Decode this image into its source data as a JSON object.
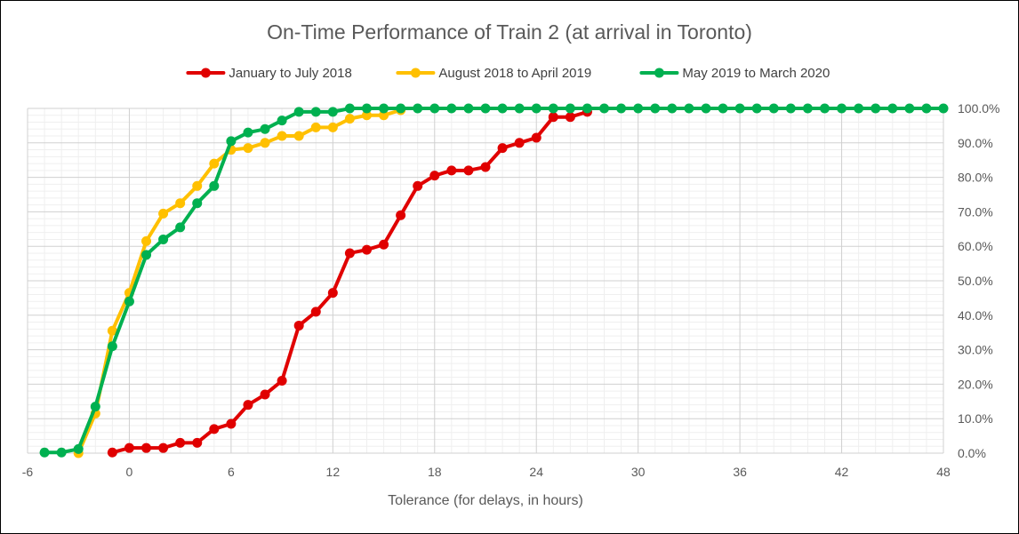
{
  "chart_data": {
    "type": "line",
    "title": "On-Time Performance of Train 2 (at arrival in Toronto)",
    "xlabel": "Tolerance (for delays, in hours)",
    "ylabel": "",
    "xlim": [
      -6,
      48
    ],
    "ylim": [
      0,
      100
    ],
    "x_major_step": 6,
    "x_minor_step": 1,
    "y_major_step": 10,
    "y_minor_step": 2,
    "y_tick_format": "percent_one_decimal",
    "x_ticks": [
      "-6",
      "0",
      "6",
      "12",
      "18",
      "24",
      "30",
      "36",
      "42",
      "48"
    ],
    "y_ticks": [
      "0.0%",
      "10.0%",
      "20.0%",
      "30.0%",
      "40.0%",
      "50.0%",
      "60.0%",
      "70.0%",
      "80.0%",
      "90.0%",
      "100.0%"
    ],
    "y_axis_position": "right",
    "grid": true,
    "legend_position": "top",
    "series": [
      {
        "name": "January to July 2018",
        "color": "#e00000",
        "x": [
          -1,
          0,
          1,
          2,
          3,
          4,
          5,
          6,
          7,
          8,
          9,
          10,
          11,
          12,
          13,
          14,
          15,
          16,
          17,
          18,
          19,
          20,
          21,
          22,
          23,
          24,
          25,
          26,
          27
        ],
        "values": [
          0.2,
          1.5,
          1.5,
          1.5,
          3,
          3,
          7,
          8.5,
          14,
          17,
          21,
          37,
          41,
          46.5,
          58,
          59,
          60.5,
          69,
          77.5,
          80.5,
          82,
          82,
          83,
          88.5,
          90,
          91.5,
          97.5,
          97.5,
          99
        ]
      },
      {
        "name": "August 2018 to April 2019",
        "color": "#ffc000",
        "x": [
          -3,
          -2,
          -1,
          0,
          1,
          2,
          3,
          4,
          5,
          6,
          7,
          8,
          9,
          10,
          11,
          12,
          13,
          14,
          15,
          16
        ],
        "values": [
          0,
          11.5,
          35.5,
          46.5,
          61.5,
          69.5,
          72.5,
          77.5,
          84,
          88,
          88.5,
          90,
          92,
          92,
          94.5,
          94.5,
          97,
          98,
          98,
          99.5
        ]
      },
      {
        "name": "May 2019 to March 2020",
        "color": "#00b050",
        "x": [
          -5,
          -4,
          -3,
          -2,
          -1,
          0,
          1,
          2,
          3,
          4,
          5,
          6,
          7,
          8,
          9,
          10,
          11,
          12,
          13,
          14,
          15,
          16,
          17,
          18,
          19,
          20,
          21,
          22,
          23,
          24,
          25,
          26,
          27,
          28,
          29,
          30,
          31,
          32,
          33,
          34,
          35,
          36,
          37,
          38,
          39,
          40,
          41,
          42,
          43,
          44,
          45,
          46,
          47,
          48
        ],
        "values": [
          0.2,
          0.2,
          1.2,
          13.5,
          31,
          44,
          57.5,
          62,
          65.5,
          72.5,
          77.5,
          90.5,
          93,
          94,
          96.5,
          99,
          99,
          99,
          100,
          100,
          100,
          100,
          100,
          100,
          100,
          100,
          100,
          100,
          100,
          100,
          100,
          100,
          100,
          100,
          100,
          100,
          100,
          100,
          100,
          100,
          100,
          100,
          100,
          100,
          100,
          100,
          100,
          100,
          100,
          100,
          100,
          100,
          100,
          100
        ]
      }
    ]
  }
}
